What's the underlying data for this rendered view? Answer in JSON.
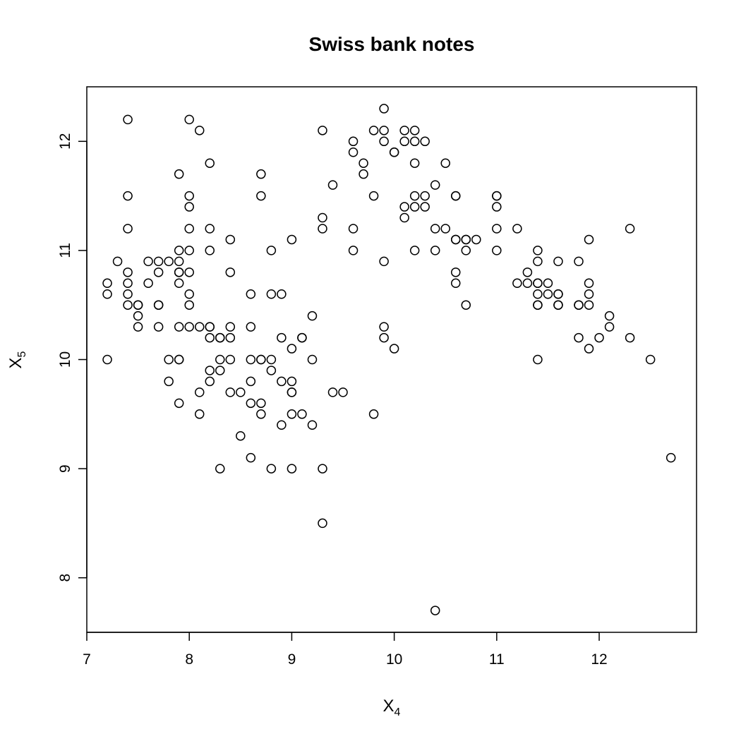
{
  "chart_data": {
    "type": "scatter",
    "title": "Swiss bank notes",
    "xlabel": {
      "base": "X",
      "sub": "4"
    },
    "ylabel": {
      "base": "X",
      "sub": "5"
    },
    "xlim": [
      7.0,
      12.95
    ],
    "ylim": [
      7.5,
      12.5
    ],
    "xticks": [
      7,
      8,
      9,
      10,
      11,
      12
    ],
    "yticks": [
      8,
      9,
      10,
      11,
      12
    ],
    "marker": "open-circle",
    "color": "#000000",
    "points": [
      [
        7.2,
        10.7
      ],
      [
        7.2,
        10.6
      ],
      [
        7.2,
        10.0
      ],
      [
        7.3,
        10.9
      ],
      [
        7.4,
        12.2
      ],
      [
        7.4,
        11.5
      ],
      [
        7.4,
        11.2
      ],
      [
        7.4,
        10.8
      ],
      [
        7.4,
        10.7
      ],
      [
        7.4,
        10.6
      ],
      [
        7.4,
        10.5
      ],
      [
        7.5,
        10.5
      ],
      [
        7.5,
        10.5
      ],
      [
        7.5,
        10.4
      ],
      [
        7.5,
        10.3
      ],
      [
        7.6,
        10.9
      ],
      [
        7.6,
        10.7
      ],
      [
        7.7,
        10.9
      ],
      [
        7.7,
        10.8
      ],
      [
        7.7,
        10.5
      ],
      [
        7.7,
        10.5
      ],
      [
        7.7,
        10.3
      ],
      [
        7.8,
        10.9
      ],
      [
        7.8,
        10.0
      ],
      [
        7.8,
        9.8
      ],
      [
        7.9,
        11.7
      ],
      [
        7.9,
        11.0
      ],
      [
        7.9,
        10.9
      ],
      [
        7.9,
        10.8
      ],
      [
        7.9,
        10.8
      ],
      [
        7.9,
        10.7
      ],
      [
        7.9,
        10.3
      ],
      [
        7.9,
        10.0
      ],
      [
        7.9,
        10.0
      ],
      [
        7.9,
        9.6
      ],
      [
        8.0,
        12.2
      ],
      [
        8.0,
        11.5
      ],
      [
        8.0,
        11.4
      ],
      [
        8.0,
        11.2
      ],
      [
        8.0,
        11.0
      ],
      [
        8.0,
        10.8
      ],
      [
        8.0,
        10.6
      ],
      [
        8.0,
        10.5
      ],
      [
        8.0,
        10.3
      ],
      [
        8.1,
        12.1
      ],
      [
        8.1,
        10.3
      ],
      [
        8.1,
        9.7
      ],
      [
        8.1,
        9.5
      ],
      [
        8.2,
        11.8
      ],
      [
        8.2,
        11.2
      ],
      [
        8.2,
        11.0
      ],
      [
        8.2,
        10.3
      ],
      [
        8.2,
        10.3
      ],
      [
        8.2,
        10.2
      ],
      [
        8.2,
        9.9
      ],
      [
        8.2,
        9.8
      ],
      [
        8.3,
        10.2
      ],
      [
        8.3,
        10.2
      ],
      [
        8.3,
        10.0
      ],
      [
        8.3,
        9.9
      ],
      [
        8.3,
        9.0
      ],
      [
        8.4,
        11.1
      ],
      [
        8.4,
        10.8
      ],
      [
        8.4,
        10.3
      ],
      [
        8.4,
        10.2
      ],
      [
        8.4,
        10.0
      ],
      [
        8.4,
        9.7
      ],
      [
        8.5,
        9.7
      ],
      [
        8.5,
        9.3
      ],
      [
        8.6,
        10.6
      ],
      [
        8.6,
        10.3
      ],
      [
        8.6,
        10.0
      ],
      [
        8.6,
        9.8
      ],
      [
        8.6,
        9.6
      ],
      [
        8.6,
        9.1
      ],
      [
        8.7,
        11.7
      ],
      [
        8.7,
        11.5
      ],
      [
        8.7,
        10.0
      ],
      [
        8.7,
        10.0
      ],
      [
        8.7,
        9.6
      ],
      [
        8.7,
        9.5
      ],
      [
        8.8,
        11.0
      ],
      [
        8.8,
        10.6
      ],
      [
        8.8,
        10.0
      ],
      [
        8.8,
        9.9
      ],
      [
        8.8,
        9.0
      ],
      [
        8.9,
        10.6
      ],
      [
        8.9,
        10.2
      ],
      [
        8.9,
        9.8
      ],
      [
        8.9,
        9.4
      ],
      [
        9.0,
        11.1
      ],
      [
        9.0,
        10.1
      ],
      [
        9.0,
        9.8
      ],
      [
        9.0,
        9.7
      ],
      [
        9.0,
        9.7
      ],
      [
        9.0,
        9.5
      ],
      [
        9.0,
        9.0
      ],
      [
        9.1,
        10.2
      ],
      [
        9.1,
        10.2
      ],
      [
        9.1,
        9.5
      ],
      [
        9.2,
        10.4
      ],
      [
        9.2,
        10.0
      ],
      [
        9.2,
        9.4
      ],
      [
        9.3,
        12.1
      ],
      [
        9.3,
        11.3
      ],
      [
        9.3,
        11.2
      ],
      [
        9.3,
        9.0
      ],
      [
        9.3,
        8.5
      ],
      [
        9.4,
        11.6
      ],
      [
        9.4,
        9.7
      ],
      [
        9.5,
        9.7
      ],
      [
        9.6,
        12.0
      ],
      [
        9.6,
        11.9
      ],
      [
        9.6,
        11.2
      ],
      [
        9.6,
        11.0
      ],
      [
        9.7,
        11.8
      ],
      [
        9.7,
        11.7
      ],
      [
        9.8,
        12.1
      ],
      [
        9.8,
        11.5
      ],
      [
        9.8,
        9.5
      ],
      [
        9.9,
        12.3
      ],
      [
        9.9,
        12.1
      ],
      [
        9.9,
        12.0
      ],
      [
        9.9,
        10.9
      ],
      [
        9.9,
        10.3
      ],
      [
        9.9,
        10.2
      ],
      [
        10.0,
        11.9
      ],
      [
        10.0,
        11.9
      ],
      [
        10.0,
        10.1
      ],
      [
        10.1,
        12.1
      ],
      [
        10.1,
        12.0
      ],
      [
        10.1,
        11.4
      ],
      [
        10.1,
        11.3
      ],
      [
        10.2,
        12.1
      ],
      [
        10.2,
        12.0
      ],
      [
        10.2,
        11.8
      ],
      [
        10.2,
        11.5
      ],
      [
        10.2,
        11.4
      ],
      [
        10.2,
        11.0
      ],
      [
        10.3,
        12.0
      ],
      [
        10.3,
        11.5
      ],
      [
        10.3,
        11.4
      ],
      [
        10.4,
        11.6
      ],
      [
        10.4,
        11.2
      ],
      [
        10.4,
        11.0
      ],
      [
        10.4,
        7.7
      ],
      [
        10.5,
        11.8
      ],
      [
        10.5,
        11.2
      ],
      [
        10.6,
        11.5
      ],
      [
        10.6,
        11.5
      ],
      [
        10.6,
        11.1
      ],
      [
        10.6,
        11.1
      ],
      [
        10.6,
        10.8
      ],
      [
        10.6,
        10.7
      ],
      [
        10.7,
        11.1
      ],
      [
        10.7,
        11.1
      ],
      [
        10.7,
        11.0
      ],
      [
        10.7,
        10.5
      ],
      [
        10.8,
        11.1
      ],
      [
        11.0,
        11.5
      ],
      [
        11.0,
        11.5
      ],
      [
        11.0,
        11.4
      ],
      [
        11.0,
        11.2
      ],
      [
        11.0,
        11.0
      ],
      [
        11.2,
        11.2
      ],
      [
        11.2,
        10.7
      ],
      [
        11.3,
        10.8
      ],
      [
        11.3,
        10.7
      ],
      [
        11.4,
        11.0
      ],
      [
        11.4,
        10.9
      ],
      [
        11.4,
        10.7
      ],
      [
        11.4,
        10.7
      ],
      [
        11.4,
        10.6
      ],
      [
        11.4,
        10.5
      ],
      [
        11.4,
        10.5
      ],
      [
        11.4,
        10.0
      ],
      [
        11.5,
        10.7
      ],
      [
        11.5,
        10.6
      ],
      [
        11.6,
        10.9
      ],
      [
        11.6,
        10.6
      ],
      [
        11.6,
        10.6
      ],
      [
        11.6,
        10.5
      ],
      [
        11.6,
        10.5
      ],
      [
        11.8,
        10.9
      ],
      [
        11.8,
        10.5
      ],
      [
        11.8,
        10.5
      ],
      [
        11.8,
        10.2
      ],
      [
        11.9,
        11.1
      ],
      [
        11.9,
        10.7
      ],
      [
        11.9,
        10.6
      ],
      [
        11.9,
        10.5
      ],
      [
        11.9,
        10.1
      ],
      [
        12.0,
        10.2
      ],
      [
        12.1,
        10.4
      ],
      [
        12.1,
        10.3
      ],
      [
        12.3,
        11.2
      ],
      [
        12.3,
        10.2
      ],
      [
        12.5,
        10.0
      ],
      [
        12.7,
        9.1
      ]
    ]
  }
}
